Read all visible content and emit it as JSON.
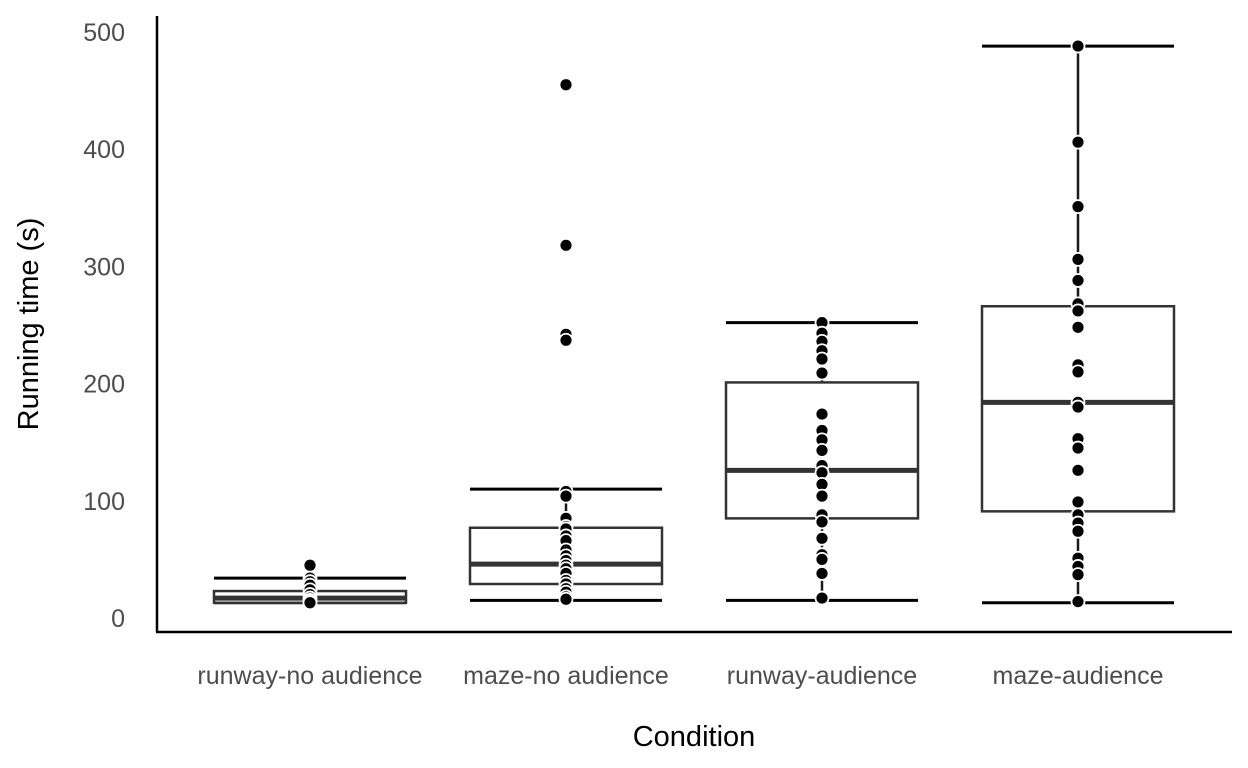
{
  "chart_data": {
    "type": "boxplot",
    "xlabel": "Condition",
    "ylabel": "Running time (s)",
    "ylim": [
      -12,
      520
    ],
    "yticks": [
      0,
      100,
      200,
      300,
      400,
      500
    ],
    "grid": false,
    "legend": "none",
    "categories": [
      "runway-no audience",
      "maze-no audience",
      "runway-audience",
      "maze-audience"
    ],
    "boxes": [
      {
        "category": "runway-no audience",
        "whisker_low": 13,
        "q1": 13,
        "median": 17,
        "q3": 23,
        "whisker_high": 34,
        "points": [
          45,
          34,
          31,
          28,
          24,
          20,
          17,
          15,
          14,
          13
        ]
      },
      {
        "category": "maze-no audience",
        "whisker_low": 15,
        "q1": 29,
        "median": 46,
        "q3": 77,
        "whisker_high": 110,
        "points": [
          455,
          318,
          242,
          237,
          108,
          104,
          85,
          78,
          76,
          70,
          66,
          58,
          53,
          49,
          45,
          42,
          38,
          32,
          29,
          25,
          22,
          18,
          16
        ]
      },
      {
        "category": "runway-audience",
        "whisker_low": 15,
        "q1": 85,
        "median": 126,
        "q3": 201,
        "whisker_high": 252,
        "points": [
          252,
          243,
          236,
          228,
          221,
          209,
          174,
          160,
          152,
          143,
          130,
          124,
          114,
          104,
          88,
          82,
          68,
          54,
          50,
          38,
          17
        ]
      },
      {
        "category": "maze-audience",
        "whisker_low": 13,
        "q1": 91,
        "median": 184,
        "q3": 266,
        "whisker_high": 488,
        "points": [
          488,
          406,
          351,
          306,
          288,
          268,
          262,
          248,
          216,
          210,
          184,
          180,
          153,
          145,
          126,
          99,
          88,
          81,
          74,
          51,
          44,
          37,
          14
        ]
      }
    ]
  }
}
